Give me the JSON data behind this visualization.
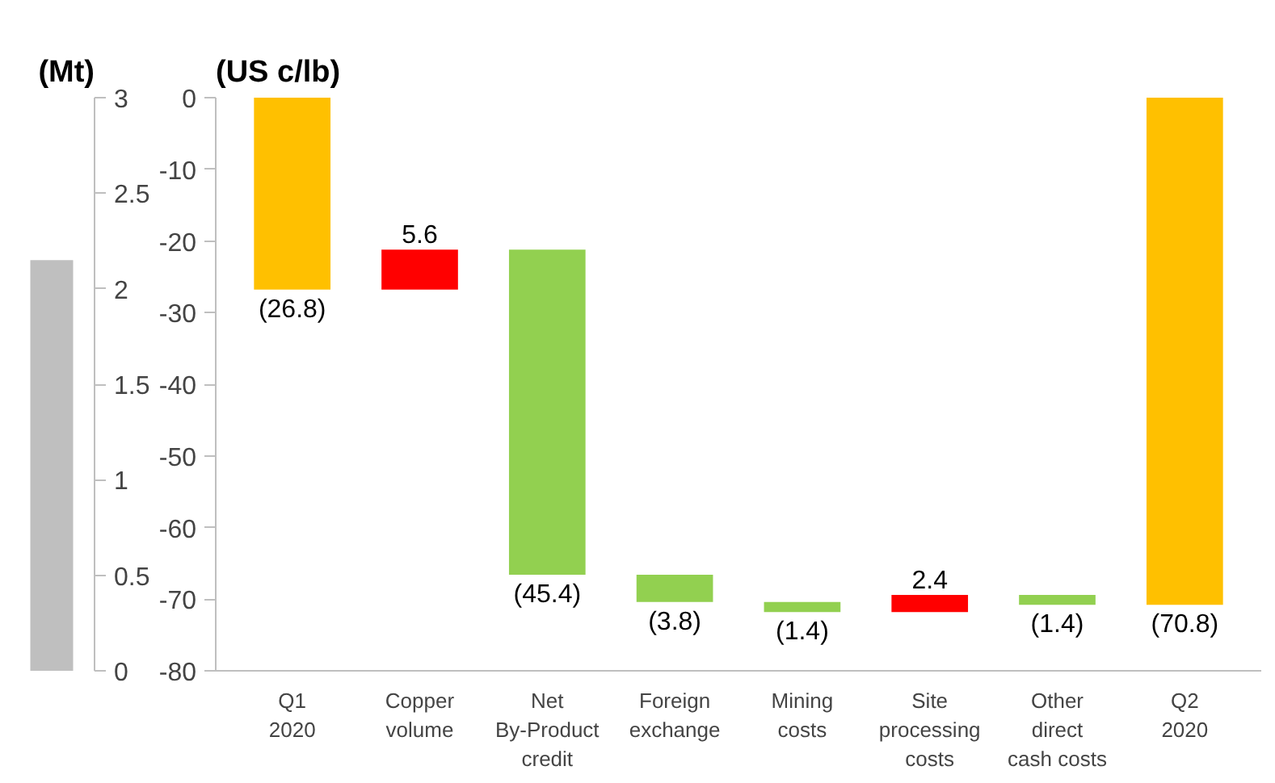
{
  "chart_data": [
    {
      "type": "bar",
      "ylabel": "(Mt)",
      "categories": [
        null
      ],
      "values": [
        2.15
      ],
      "color": "#bfbfbf",
      "ylim": [
        0,
        3
      ],
      "yticks": [
        0,
        0.5,
        1,
        1.5,
        2,
        2.5,
        3
      ],
      "tick_labels": "y",
      "grid": false
    },
    {
      "type": "bar",
      "ylabel": "(US c/lb)",
      "categories": [
        "Q1\n2020",
        "Copper\nvolume",
        "Net\nBy-Product\ncredit",
        "Foreign\nexchange",
        "Mining\ncosts",
        "Site\nprocessing\ncosts",
        "Other\ndirect\ncash costs",
        "Q2\n2020"
      ],
      "base": [
        0,
        -26.8,
        -21.2,
        -66.6,
        -70.4,
        -71.8,
        -69.4,
        0
      ],
      "values": [
        -26.8,
        5.6,
        -45.4,
        -3.8,
        -1.4,
        2.4,
        -1.4,
        -70.8
      ],
      "colors": [
        "#ffc000",
        "#ff0000",
        "#92d050",
        "#92d050",
        "#92d050",
        "#ff0000",
        "#92d050",
        "#ffc000"
      ],
      "value_labels": [
        "(26.8)",
        "5.6",
        "(45.4)",
        "(3.8)",
        "(1.4)",
        "2.4",
        "(1.4)",
        "(70.8)"
      ],
      "ylim": [
        -80,
        0
      ],
      "yticks": [
        -80,
        -70,
        -60,
        -50,
        -40,
        -30,
        -20,
        -10,
        0
      ],
      "grid": false
    }
  ]
}
